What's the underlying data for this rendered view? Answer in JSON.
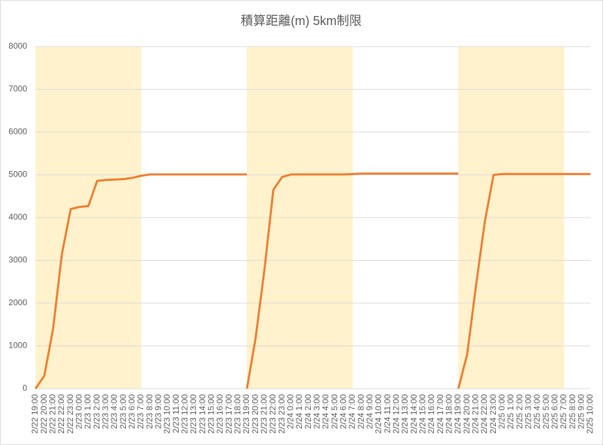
{
  "chart_data": {
    "type": "line",
    "title": "積算距離(m) 5km制限",
    "categories": [
      "2/22 19:00",
      "2/22 20:00",
      "2/22 21:00",
      "2/22 22:00",
      "2/22 23:00",
      "2/23 0:00",
      "2/23 1:00",
      "2/23 2:00",
      "2/23 3:00",
      "2/23 4:00",
      "2/23 5:00",
      "2/23 6:00",
      "2/23 7:00",
      "2/23 8:00",
      "2/23 9:00",
      "2/23 10:00",
      "2/23 11:00",
      "2/23 12:00",
      "2/23 13:00",
      "2/23 14:00",
      "2/23 15:00",
      "2/23 16:00",
      "2/23 17:00",
      "2/23 18:00",
      "2/23 19:00",
      "2/23 20:00",
      "2/23 21:00",
      "2/23 22:00",
      "2/23 23:00",
      "2/24 0:00",
      "2/24 1:00",
      "2/24 2:00",
      "2/24 3:00",
      "2/24 4:00",
      "2/24 5:00",
      "2/24 6:00",
      "2/24 7:00",
      "2/24 8:00",
      "2/24 9:00",
      "2/24 10:00",
      "2/24 11:00",
      "2/24 12:00",
      "2/24 13:00",
      "2/24 14:00",
      "2/24 15:00",
      "2/24 16:00",
      "2/24 17:00",
      "2/24 18:00",
      "2/24 19:00",
      "2/24 20:00",
      "2/24 21:00",
      "2/24 22:00",
      "2/24 23:00",
      "2/25 0:00",
      "2/25 1:00",
      "2/25 2:00",
      "2/25 3:00",
      "2/25 4:00",
      "2/25 5:00",
      "2/25 6:00",
      "2/25 7:00",
      "2/25 8:00",
      "2/25 9:00",
      "2/25 10:00"
    ],
    "series": [
      {
        "color": "#ed7d31",
        "values": [
          0,
          300,
          1400,
          3150,
          4200,
          4250,
          4270,
          4860,
          4880,
          4890,
          4900,
          4930,
          4980,
          5010,
          5010,
          5010,
          5010,
          5010,
          5010,
          5010,
          5010,
          5010,
          5010,
          5010,
          5010,
          null,
          null,
          null,
          null,
          null,
          null,
          null,
          null,
          null,
          null,
          null,
          null,
          null,
          null,
          null,
          null,
          null,
          null,
          null,
          null,
          null,
          null,
          null,
          null,
          null,
          null,
          null,
          null,
          null,
          null,
          null,
          null,
          null,
          null,
          null,
          null,
          null,
          null,
          null
        ]
      },
      {
        "color": "#ed7d31",
        "values": [
          null,
          null,
          null,
          null,
          null,
          null,
          null,
          null,
          null,
          null,
          null,
          null,
          null,
          null,
          null,
          null,
          null,
          null,
          null,
          null,
          null,
          null,
          null,
          null,
          0,
          1200,
          2800,
          4650,
          4950,
          5010,
          5010,
          5010,
          5010,
          5010,
          5010,
          5010,
          5020,
          5030,
          5030,
          5030,
          5030,
          5030,
          5030,
          5030,
          5030,
          5030,
          5030,
          5030,
          5030,
          null,
          null,
          null,
          null,
          null,
          null,
          null,
          null,
          null,
          null,
          null,
          null,
          null,
          null,
          null
        ]
      },
      {
        "color": "#ed7d31",
        "values": [
          null,
          null,
          null,
          null,
          null,
          null,
          null,
          null,
          null,
          null,
          null,
          null,
          null,
          null,
          null,
          null,
          null,
          null,
          null,
          null,
          null,
          null,
          null,
          null,
          null,
          null,
          null,
          null,
          null,
          null,
          null,
          null,
          null,
          null,
          null,
          null,
          null,
          null,
          null,
          null,
          null,
          null,
          null,
          null,
          null,
          null,
          null,
          null,
          0,
          800,
          2400,
          3900,
          5000,
          5020,
          5020,
          5020,
          5020,
          5020,
          5020,
          5020,
          5020,
          5020,
          5020,
          5020
        ]
      }
    ],
    "bands": [
      {
        "from": "2/22 19:00",
        "to": "2/23 7:00",
        "color": "#fff2cc"
      },
      {
        "from": "2/23 19:00",
        "to": "2/24 7:00",
        "color": "#fff2cc"
      },
      {
        "from": "2/24 19:00",
        "to": "2/25 7:00",
        "color": "#fff2cc"
      }
    ],
    "ylim": [
      0,
      8000
    ],
    "yticks": [
      0,
      1000,
      2000,
      3000,
      4000,
      5000,
      6000,
      7000,
      8000
    ],
    "grid": true
  }
}
